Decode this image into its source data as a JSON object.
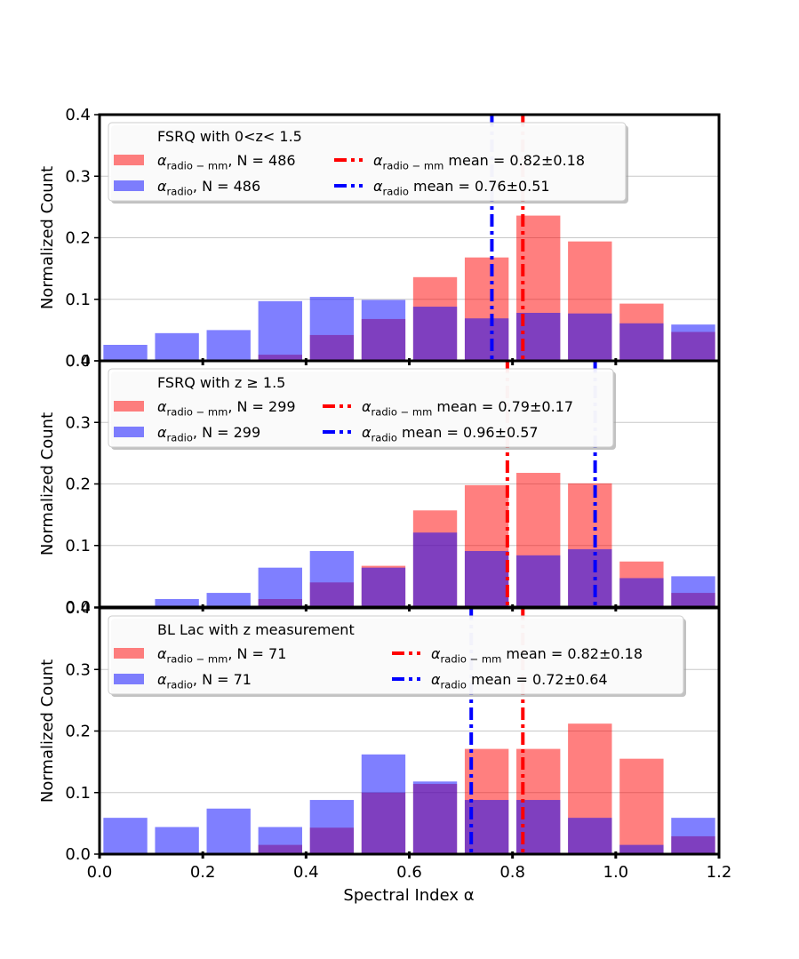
{
  "figure": {
    "xlabel": "Spectral Index α",
    "ylabel": "Normalized Count"
  },
  "colors": {
    "radio_mm": "#ff0000",
    "radio": "#0000ff",
    "overlap": "#8040c0",
    "grid": "#c8c8c8"
  },
  "chart_data": [
    {
      "type": "bar",
      "title": "FSRQ with 0<z< 1.5",
      "bin_centers": [
        0.05,
        0.15,
        0.25,
        0.35,
        0.45,
        0.55,
        0.65,
        0.75,
        0.85,
        0.95,
        1.05,
        1.15
      ],
      "xlim": [
        0.0,
        1.2
      ],
      "ylim": [
        0.0,
        0.4
      ],
      "yticks": [
        "0.0",
        "0.1",
        "0.2",
        "0.3",
        "0.4"
      ],
      "xticks": [],
      "grid": true,
      "legend_placement": "top",
      "series": [
        {
          "name_main": "α",
          "name_sub": "radio − mm",
          "name_rest": ", N = 486",
          "color": "#ff0000",
          "values": [
            0.0,
            0.0,
            0.0,
            0.01,
            0.042,
            0.068,
            0.136,
            0.168,
            0.236,
            0.194,
            0.093,
            0.047
          ]
        },
        {
          "name_main": "α",
          "name_sub": "radio",
          "name_rest": ", N = 486",
          "color": "#0000ff",
          "values": [
            0.026,
            0.045,
            0.05,
            0.097,
            0.104,
            0.099,
            0.088,
            0.069,
            0.078,
            0.077,
            0.061,
            0.059
          ]
        }
      ],
      "mean_lines": [
        {
          "main": "α",
          "sub": "radio − mm",
          "rest": " mean = 0.82±0.18",
          "value": 0.82,
          "color": "#ff0000"
        },
        {
          "main": "α",
          "sub": "radio",
          "rest": " mean = 0.76±0.51",
          "value": 0.76,
          "color": "#0000ff"
        }
      ]
    },
    {
      "type": "bar",
      "title": "FSRQ with z ≥ 1.5",
      "bin_centers": [
        0.05,
        0.15,
        0.25,
        0.35,
        0.45,
        0.55,
        0.65,
        0.75,
        0.85,
        0.95,
        1.05,
        1.15
      ],
      "xlim": [
        0.0,
        1.2
      ],
      "ylim": [
        0.0,
        0.4
      ],
      "yticks": [
        "0.0",
        "0.1",
        "0.2",
        "0.3",
        "0.4"
      ],
      "xticks": [],
      "grid": true,
      "legend_placement": "top",
      "series": [
        {
          "name_main": "α",
          "name_sub": "radio − mm",
          "name_rest": ", N = 299",
          "color": "#ff0000",
          "values": [
            0.0,
            0.0,
            0.0,
            0.013,
            0.04,
            0.067,
            0.157,
            0.198,
            0.218,
            0.201,
            0.074,
            0.023
          ]
        },
        {
          "name_main": "α",
          "name_sub": "radio",
          "name_rest": ", N = 299",
          "color": "#0000ff",
          "values": [
            0.0,
            0.013,
            0.023,
            0.064,
            0.091,
            0.064,
            0.121,
            0.091,
            0.084,
            0.094,
            0.047,
            0.05
          ]
        }
      ],
      "mean_lines": [
        {
          "main": "α",
          "sub": "radio − mm",
          "rest": " mean = 0.79±0.17",
          "value": 0.79,
          "color": "#ff0000"
        },
        {
          "main": "α",
          "sub": "radio",
          "rest": " mean = 0.96±0.57",
          "value": 0.96,
          "color": "#0000ff"
        }
      ]
    },
    {
      "type": "bar",
      "title": "BL Lac with z measurement",
      "bin_centers": [
        0.05,
        0.15,
        0.25,
        0.35,
        0.45,
        0.55,
        0.65,
        0.75,
        0.85,
        0.95,
        1.05,
        1.15
      ],
      "xlim": [
        0.0,
        1.2
      ],
      "ylim": [
        0.0,
        0.4
      ],
      "yticks": [
        "0.0",
        "0.1",
        "0.2",
        "0.3",
        "0.4"
      ],
      "xticks": [
        "0.0",
        "0.2",
        "0.4",
        "0.6",
        "0.8",
        "1.0",
        "1.2"
      ],
      "grid": true,
      "legend_placement": "top",
      "series": [
        {
          "name_main": "α",
          "name_sub": "radio − mm",
          "name_rest": ", N = 71",
          "color": "#ff0000",
          "values": [
            0.0,
            0.0,
            0.0,
            0.015,
            0.043,
            0.1,
            0.114,
            0.171,
            0.171,
            0.212,
            0.155,
            0.029
          ]
        },
        {
          "name_main": "α",
          "name_sub": "radio",
          "name_rest": ", N = 71",
          "color": "#0000ff",
          "values": [
            0.059,
            0.044,
            0.074,
            0.044,
            0.088,
            0.162,
            0.118,
            0.088,
            0.088,
            0.059,
            0.015,
            0.059
          ]
        }
      ],
      "mean_lines": [
        {
          "main": "α",
          "sub": "radio − mm",
          "rest": " mean = 0.82±0.18",
          "value": 0.82,
          "color": "#ff0000"
        },
        {
          "main": "α",
          "sub": "radio",
          "rest": " mean = 0.72±0.64",
          "value": 0.72,
          "color": "#0000ff"
        }
      ]
    }
  ]
}
